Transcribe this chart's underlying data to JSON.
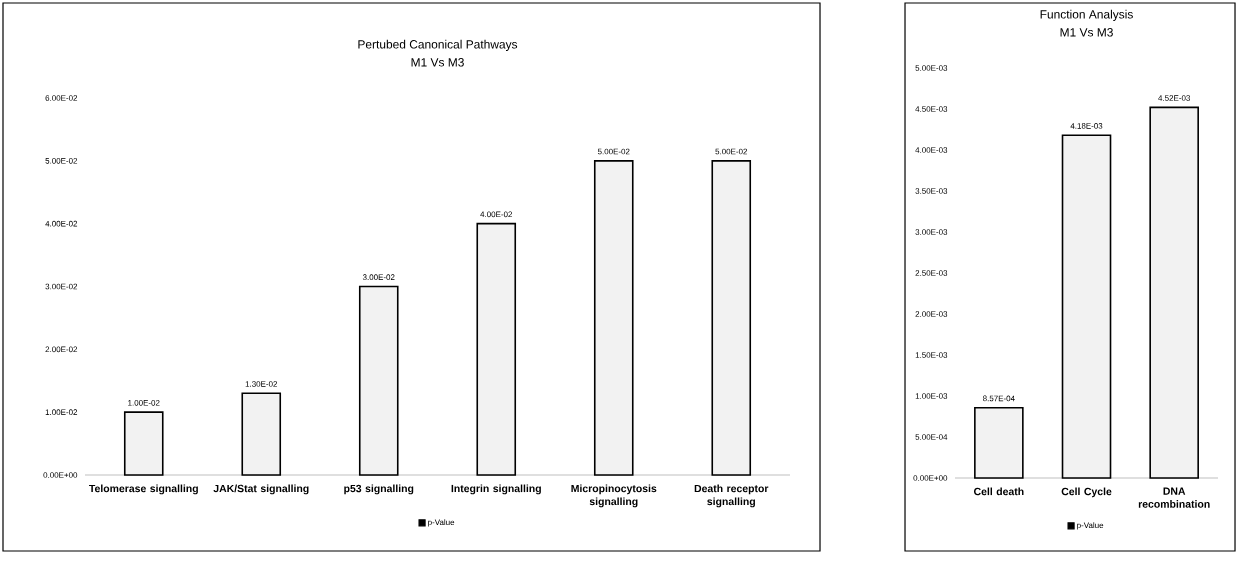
{
  "chart_data": [
    {
      "type": "bar",
      "title": "Pertubed Canonical Pathways",
      "subtitle": "M1 Vs M3",
      "categories": [
        "Telomerase signalling",
        "JAK/Stat signalling",
        "p53 signalling",
        "Integrin signalling",
        "Micropinocytosis signalling",
        "Death receptor signalling"
      ],
      "series": [
        {
          "name": "p-Value",
          "color": "#f2f2f2",
          "values": [
            0.01,
            0.013,
            0.03,
            0.04,
            0.05,
            0.05
          ],
          "value_labels": [
            "1.00E-02",
            "1.30E-02",
            "3.00E-02",
            "4.00E-02",
            "5.00E-02",
            "5.00E-02"
          ]
        }
      ],
      "ylim": [
        0,
        0.06
      ],
      "yticks": [
        {
          "value": 0,
          "label": "0.00E+00"
        },
        {
          "value": 0.01,
          "label": "1.00E-02"
        },
        {
          "value": 0.02,
          "label": "2.00E-02"
        },
        {
          "value": 0.03,
          "label": "3.00E-02"
        },
        {
          "value": 0.04,
          "label": "4.00E-02"
        },
        {
          "value": 0.05,
          "label": "5.00E-02"
        },
        {
          "value": 0.06,
          "label": "6.00E-02"
        }
      ],
      "grid": false,
      "legend": "bottom"
    },
    {
      "type": "bar",
      "title": "Function Analysis",
      "subtitle": "M1 Vs M3",
      "categories": [
        "Cell death",
        "Cell Cycle",
        "DNA recombination"
      ],
      "series": [
        {
          "name": "p-Value",
          "color": "#f2f2f2",
          "values": [
            0.000857,
            0.00418,
            0.00452
          ],
          "value_labels": [
            "8.57E-04",
            "4.18E-03",
            "4.52E-03"
          ]
        }
      ],
      "ylim": [
        0,
        0.005
      ],
      "yticks": [
        {
          "value": 0,
          "label": "0.00E+00"
        },
        {
          "value": 0.0005,
          "label": "5.00E-04"
        },
        {
          "value": 0.001,
          "label": "1.00E-03"
        },
        {
          "value": 0.0015,
          "label": "1.50E-03"
        },
        {
          "value": 0.002,
          "label": "2.00E-03"
        },
        {
          "value": 0.0025,
          "label": "2.50E-03"
        },
        {
          "value": 0.003,
          "label": "3.00E-03"
        },
        {
          "value": 0.0035,
          "label": "3.50E-03"
        },
        {
          "value": 0.004,
          "label": "4.00E-03"
        },
        {
          "value": 0.0045,
          "label": "4.50E-03"
        },
        {
          "value": 0.005,
          "label": "5.00E-03"
        }
      ],
      "grid": false,
      "legend": "bottom"
    }
  ]
}
